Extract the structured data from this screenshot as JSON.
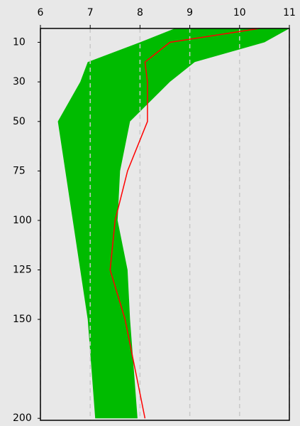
{
  "chart_data": {
    "type": "profile",
    "y": [
      3,
      10,
      20,
      30,
      50,
      75,
      100,
      125,
      150,
      200
    ],
    "band": {
      "color": "#00bb00",
      "low": [
        8.7,
        8.0,
        6.95,
        6.8,
        6.35,
        6.5,
        6.65,
        6.8,
        6.95,
        7.1
      ],
      "high": [
        11.0,
        10.5,
        9.1,
        8.6,
        7.8,
        7.6,
        7.55,
        7.75,
        7.8,
        7.95
      ]
    },
    "series": [
      {
        "color": "#ff0000",
        "values": [
          10.4,
          8.6,
          8.1,
          8.15,
          8.15,
          7.75,
          7.5,
          7.4,
          7.7,
          8.1
        ]
      }
    ],
    "xlim": [
      6,
      11
    ],
    "xticks": [
      6,
      7,
      8,
      9,
      10,
      11
    ],
    "ylim": [
      3,
      201
    ],
    "yticks": [
      10,
      30,
      50,
      75,
      100,
      125,
      150,
      200
    ],
    "y_inverted": true,
    "grid": true
  }
}
